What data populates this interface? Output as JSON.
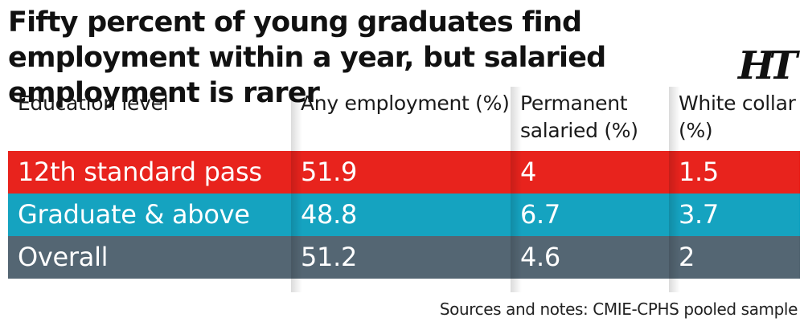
{
  "title": "Fifty percent of young graduates find employment within a year, but salaried employment is rarer",
  "logo": "HT",
  "source_note": "Sources and notes: CMIE-CPHS pooled sample",
  "colors": {
    "red": "#e8231d",
    "blue": "#15a3c0",
    "gray": "#546673"
  },
  "chart_data": {
    "type": "table",
    "title": "Fifty percent of young graduates find employment within a year, but salaried employment is rarer",
    "columns": [
      "Education level",
      "Any employment (%)",
      "Permanent salaried (%)",
      "White collar (%)"
    ],
    "rows": [
      {
        "label": "12th standard pass",
        "values": [
          "51.9",
          "4",
          "1.5"
        ],
        "color": "#e8231d"
      },
      {
        "label": "Graduate & above",
        "values": [
          "48.8",
          "6.7",
          "3.7"
        ],
        "color": "#15a3c0"
      },
      {
        "label": "Overall",
        "values": [
          "51.2",
          "4.6",
          "2"
        ],
        "color": "#546673"
      }
    ]
  }
}
